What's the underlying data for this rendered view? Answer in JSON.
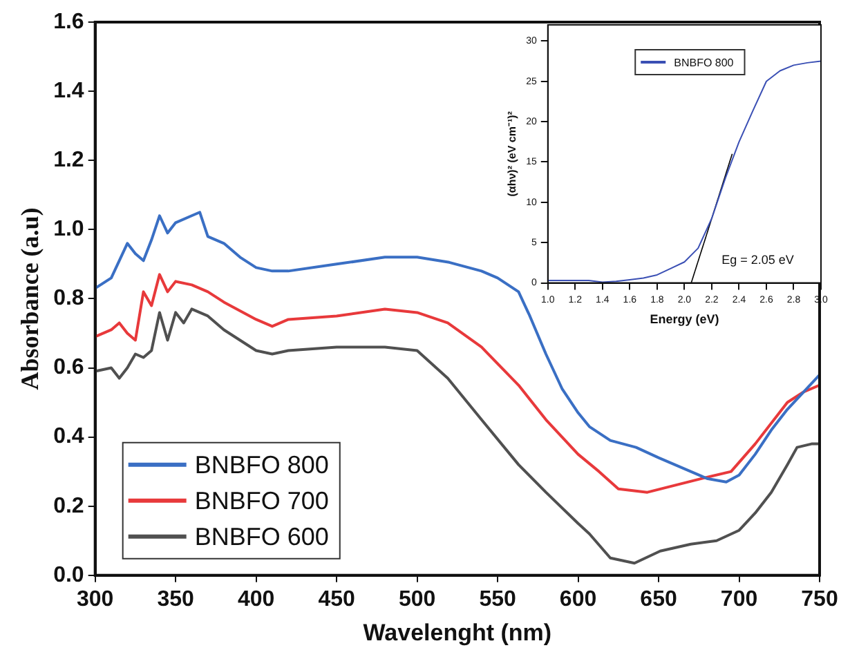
{
  "chart_data": [
    {
      "type": "line",
      "xlabel": "Wavelenght (nm)",
      "ylabel": "Absorbance (a.u)",
      "xlim": [
        300,
        750
      ],
      "xticks": [
        300,
        350,
        400,
        450,
        500,
        550,
        600,
        650,
        700,
        750
      ],
      "ylim": [
        0,
        1.6
      ],
      "yticks": [
        {
          "value": 0,
          "label": "0.0"
        },
        0.2,
        0.4,
        0.6,
        0.8,
        {
          "value": 1,
          "label": "1.0"
        },
        1.2,
        1.4,
        1.6
      ],
      "grid": false,
      "legend": "bottom left",
      "marker": "none",
      "line_style": "solid",
      "series": [
        {
          "name": "BNBFO 800",
          "color": "#3a6fc4",
          "x": [
            300,
            310,
            320,
            325,
            330,
            335,
            340,
            345,
            350,
            360,
            365,
            370,
            380,
            390,
            400,
            410,
            420,
            450,
            480,
            500,
            520,
            540,
            550,
            563,
            570,
            580,
            590,
            600,
            607,
            620,
            636,
            650,
            660,
            670,
            680,
            692,
            700,
            710,
            720,
            730,
            740,
            750
          ],
          "values": [
            0.83,
            0.86,
            0.96,
            0.93,
            0.91,
            0.97,
            1.04,
            0.99,
            1.02,
            1.04,
            1.05,
            0.98,
            0.96,
            0.92,
            0.89,
            0.88,
            0.88,
            0.9,
            0.92,
            0.92,
            0.905,
            0.88,
            0.86,
            0.82,
            0.75,
            0.64,
            0.54,
            0.47,
            0.43,
            0.39,
            0.37,
            0.34,
            0.32,
            0.3,
            0.28,
            0.27,
            0.29,
            0.35,
            0.42,
            0.48,
            0.53,
            0.58
          ]
        },
        {
          "name": "BNBFO 700",
          "color": "#e8393b",
          "x": [
            300,
            310,
            315,
            320,
            325,
            330,
            335,
            340,
            345,
            350,
            360,
            370,
            380,
            400,
            410,
            420,
            450,
            480,
            500,
            519,
            540,
            563,
            580,
            600,
            613,
            625,
            643,
            660,
            677,
            695,
            710,
            730,
            740,
            750
          ],
          "values": [
            0.69,
            0.71,
            0.73,
            0.7,
            0.68,
            0.82,
            0.78,
            0.87,
            0.82,
            0.85,
            0.84,
            0.82,
            0.79,
            0.74,
            0.72,
            0.74,
            0.75,
            0.77,
            0.76,
            0.73,
            0.66,
            0.55,
            0.45,
            0.35,
            0.3,
            0.25,
            0.24,
            0.26,
            0.28,
            0.3,
            0.38,
            0.5,
            0.53,
            0.55
          ]
        },
        {
          "name": "BNBFO 600",
          "color": "#505050",
          "x": [
            300,
            310,
            315,
            320,
            325,
            330,
            335,
            340,
            345,
            350,
            355,
            360,
            370,
            380,
            400,
            410,
            420,
            450,
            480,
            500,
            519,
            540,
            563,
            580,
            600,
            607,
            620,
            635,
            651,
            670,
            686,
            700,
            710,
            720,
            730,
            736,
            745,
            750
          ],
          "values": [
            0.59,
            0.6,
            0.57,
            0.6,
            0.64,
            0.63,
            0.65,
            0.76,
            0.68,
            0.76,
            0.73,
            0.77,
            0.75,
            0.71,
            0.65,
            0.64,
            0.65,
            0.66,
            0.66,
            0.65,
            0.57,
            0.45,
            0.32,
            0.24,
            0.15,
            0.12,
            0.05,
            0.035,
            0.07,
            0.09,
            0.1,
            0.13,
            0.18,
            0.24,
            0.32,
            0.37,
            0.38,
            0.38
          ]
        }
      ]
    },
    {
      "type": "line",
      "xlabel": "Energy (eV)",
      "ylabel": "(αhν)² (eV cm⁻¹)²",
      "xlim": [
        1.0,
        3.0
      ],
      "xticks": [
        {
          "value": 1.0,
          "label": "1.0"
        },
        1.2,
        1.4,
        1.6,
        1.8,
        {
          "value": 2.0,
          "label": "2.0"
        },
        2.2,
        2.4,
        2.6,
        2.8,
        {
          "value": 3.0,
          "label": "3.0"
        }
      ],
      "ylim": [
        0,
        32
      ],
      "yticks": [
        0,
        5,
        10,
        15,
        20,
        25,
        30
      ],
      "grid": false,
      "legend": "top",
      "marker": "none",
      "annotations": [
        {
          "text": "Eg = 2.05 eV",
          "x": 2.05,
          "y": 0
        }
      ],
      "series": [
        {
          "name": "BNBFO 800",
          "color": "#3a4fb4",
          "x": [
            1.0,
            1.2,
            1.3,
            1.4,
            1.5,
            1.6,
            1.7,
            1.8,
            1.9,
            2.0,
            2.1,
            2.2,
            2.3,
            2.4,
            2.5,
            2.6,
            2.7,
            2.8,
            2.9,
            3.0
          ],
          "values": [
            0.3,
            0.3,
            0.3,
            0.1,
            0.2,
            0.4,
            0.6,
            1.0,
            1.8,
            2.6,
            4.3,
            8.0,
            13.0,
            17.5,
            21.3,
            25.0,
            26.3,
            27.0,
            27.3,
            27.5
          ]
        },
        {
          "type": "line",
          "color": "#000000",
          "x": [
            2.05,
            2.35
          ],
          "values": [
            0,
            16
          ]
        }
      ]
    }
  ]
}
